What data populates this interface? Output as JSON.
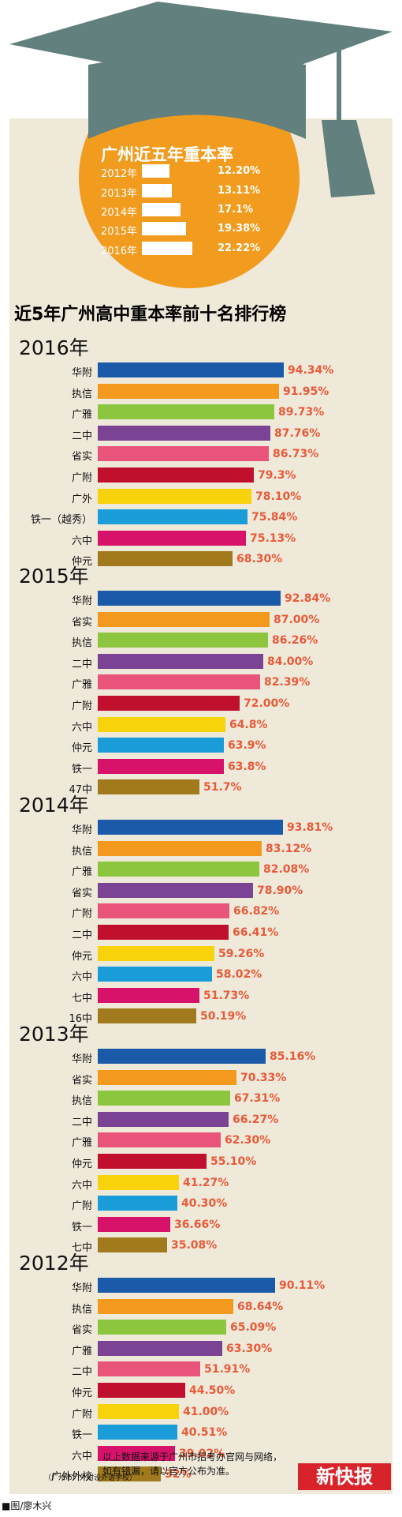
{
  "summary": {
    "title": "广州近五年重本率",
    "rows": [
      {
        "year": "2012年",
        "value": "12.20%",
        "v": 12.2
      },
      {
        "year": "2013年",
        "value": "13.11%",
        "v": 13.11
      },
      {
        "year": "2014年",
        "value": "17.1%",
        "v": 17.1
      },
      {
        "year": "2015年",
        "value": "19.38%",
        "v": 19.38
      },
      {
        "year": "2016年",
        "value": "22.22%",
        "v": 22.22
      }
    ]
  },
  "main_title": "近5年广州高中重本率前十名排行榜",
  "palette": [
    "#1b5aa8",
    "#f39a1e",
    "#8cc63f",
    "#7b4394",
    "#e8547a",
    "#c0102e",
    "#f8d30b",
    "#1a9cd8",
    "#d6126b",
    "#a07a1c"
  ],
  "charts": [
    {
      "year": "2016年",
      "rows": [
        {
          "school": "华附",
          "label": "94.34%",
          "value": 94.34
        },
        {
          "school": "执信",
          "label": "91.95%",
          "value": 91.95
        },
        {
          "school": "广雅",
          "label": "89.73%",
          "value": 89.73
        },
        {
          "school": "二中",
          "label": "87.76%",
          "value": 87.76
        },
        {
          "school": "省实",
          "label": "86.73%",
          "value": 86.73
        },
        {
          "school": "广附",
          "label": "79.3%",
          "value": 79.3
        },
        {
          "school": "广外",
          "label": "78.10%",
          "value": 78.1
        },
        {
          "school": "铁一（越秀）",
          "label": "75.84%",
          "value": 75.84
        },
        {
          "school": "六中",
          "label": "75.13%",
          "value": 75.13
        },
        {
          "school": "仲元",
          "label": "68.30%",
          "value": 68.3
        }
      ]
    },
    {
      "year": "2015年",
      "rows": [
        {
          "school": "华附",
          "label": "92.84%",
          "value": 92.84
        },
        {
          "school": "省实",
          "label": "87.00%",
          "value": 87.0
        },
        {
          "school": "执信",
          "label": "86.26%",
          "value": 86.26
        },
        {
          "school": "二中",
          "label": "84.00%",
          "value": 84.0
        },
        {
          "school": "广雅",
          "label": "82.39%",
          "value": 82.39
        },
        {
          "school": "广附",
          "label": "72.00%",
          "value": 72.0
        },
        {
          "school": "六中",
          "label": "64.8%",
          "value": 64.8
        },
        {
          "school": "仲元",
          "label": "63.9%",
          "value": 63.9
        },
        {
          "school": "铁一",
          "label": "63.8%",
          "value": 63.8
        },
        {
          "school": "47中",
          "label": "51.7%",
          "value": 51.7
        }
      ]
    },
    {
      "year": "2014年",
      "rows": [
        {
          "school": "华附",
          "label": "93.81%",
          "value": 93.81
        },
        {
          "school": "执信",
          "label": "83.12%",
          "value": 83.12
        },
        {
          "school": "广雅",
          "label": "82.08%",
          "value": 82.08
        },
        {
          "school": "省实",
          "label": "78.90%",
          "value": 78.9
        },
        {
          "school": "广附",
          "label": "66.82%",
          "value": 66.82
        },
        {
          "school": "二中",
          "label": "66.41%",
          "value": 66.41
        },
        {
          "school": "仲元",
          "label": "59.26%",
          "value": 59.26
        },
        {
          "school": "六中",
          "label": "58.02%",
          "value": 58.02
        },
        {
          "school": "七中",
          "label": "51.73%",
          "value": 51.73
        },
        {
          "school": "16中",
          "label": "50.19%",
          "value": 50.19
        }
      ]
    },
    {
      "year": "2013年",
      "rows": [
        {
          "school": "华附",
          "label": "85.16%",
          "value": 85.16
        },
        {
          "school": "省实",
          "label": "70.33%",
          "value": 70.33
        },
        {
          "school": "执信",
          "label": "67.31%",
          "value": 67.31
        },
        {
          "school": "二中",
          "label": "66.27%",
          "value": 66.27
        },
        {
          "school": "广雅",
          "label": "62.30%",
          "value": 62.3
        },
        {
          "school": "仲元",
          "label": "55.10%",
          "value": 55.1
        },
        {
          "school": "六中",
          "label": "41.27%",
          "value": 41.27
        },
        {
          "school": "广附",
          "label": "40.30%",
          "value": 40.3
        },
        {
          "school": "铁一",
          "label": "36.66%",
          "value": 36.66
        },
        {
          "school": "七中",
          "label": "35.08%",
          "value": 35.08
        }
      ]
    },
    {
      "year": "2012年",
      "rows": [
        {
          "school": "华附",
          "label": "90.11%",
          "value": 90.11
        },
        {
          "school": "执信",
          "label": "68.64%",
          "value": 68.64
        },
        {
          "school": "省实",
          "label": "65.09%",
          "value": 65.09
        },
        {
          "school": "广雅",
          "label": "63.30%",
          "value": 63.3
        },
        {
          "school": "二中",
          "label": "51.91%",
          "value": 51.91
        },
        {
          "school": "仲元",
          "label": "44.50%",
          "value": 44.5
        },
        {
          "school": "广附",
          "label": "41.00%",
          "value": 41.0
        },
        {
          "school": "铁一",
          "label": "40.51%",
          "value": 40.51
        },
        {
          "school": "六中",
          "label": "39.02%",
          "value": 39.02
        },
        {
          "school": "广外外校",
          "label": "32%",
          "value": 32
        }
      ]
    }
  ],
  "footer": {
    "sub_note": "（广州市广外附设外语学校）",
    "note_line1": "以上数据来源于广州市招考办官网与网络，",
    "note_line2": "如有错漏，请以官方公布为准。",
    "logo": "新快报",
    "credit": "■图/廖木兴"
  },
  "chart_data": [
    {
      "type": "bar",
      "title": "广州近五年重本率",
      "categories": [
        "2012年",
        "2013年",
        "2014年",
        "2015年",
        "2016年"
      ],
      "values": [
        12.2,
        13.11,
        17.1,
        19.38,
        22.22
      ]
    },
    {
      "type": "bar",
      "title": "2016年",
      "categories": [
        "华附",
        "执信",
        "广雅",
        "二中",
        "省实",
        "广附",
        "广外",
        "铁一（越秀）",
        "六中",
        "仲元"
      ],
      "values": [
        94.34,
        91.95,
        89.73,
        87.76,
        86.73,
        79.3,
        78.1,
        75.84,
        75.13,
        68.3
      ]
    },
    {
      "type": "bar",
      "title": "2015年",
      "categories": [
        "华附",
        "省实",
        "执信",
        "二中",
        "广雅",
        "广附",
        "六中",
        "仲元",
        "铁一",
        "47中"
      ],
      "values": [
        92.84,
        87.0,
        86.26,
        84.0,
        82.39,
        72.0,
        64.8,
        63.9,
        63.8,
        51.7
      ]
    },
    {
      "type": "bar",
      "title": "2014年",
      "categories": [
        "华附",
        "执信",
        "广雅",
        "省实",
        "广附",
        "二中",
        "仲元",
        "六中",
        "七中",
        "16中"
      ],
      "values": [
        93.81,
        83.12,
        82.08,
        78.9,
        66.82,
        66.41,
        59.26,
        58.02,
        51.73,
        50.19
      ]
    },
    {
      "type": "bar",
      "title": "2013年",
      "categories": [
        "华附",
        "省实",
        "执信",
        "二中",
        "广雅",
        "仲元",
        "六中",
        "广附",
        "铁一",
        "七中"
      ],
      "values": [
        85.16,
        70.33,
        67.31,
        66.27,
        62.3,
        55.1,
        41.27,
        40.3,
        36.66,
        35.08
      ]
    },
    {
      "type": "bar",
      "title": "2012年",
      "categories": [
        "华附",
        "执信",
        "省实",
        "广雅",
        "二中",
        "仲元",
        "广附",
        "铁一",
        "六中",
        "广外外校"
      ],
      "values": [
        90.11,
        68.64,
        65.09,
        63.3,
        51.91,
        44.5,
        41.0,
        40.51,
        39.02,
        32
      ]
    }
  ]
}
